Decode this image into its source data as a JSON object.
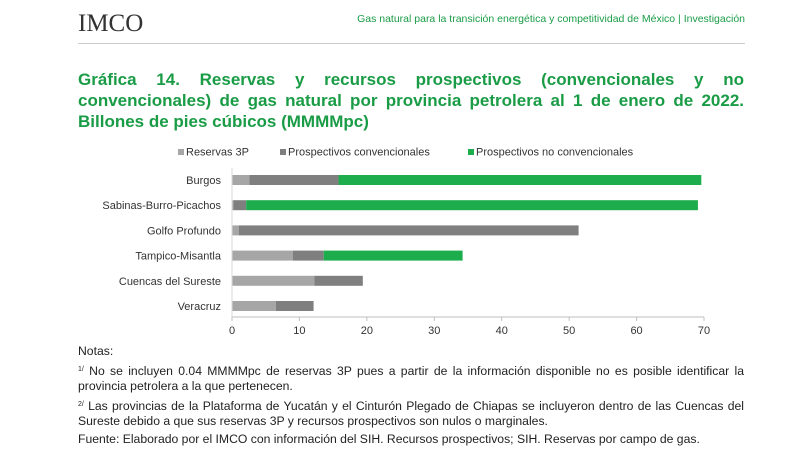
{
  "header": {
    "logo_text": "IMCO",
    "section_text": "Gas natural para la transición energética y competitividad de México | Investigación"
  },
  "title": "Gráfica 14. Reservas y recursos prospectivos (convencionales y no convencionales) de gas natural por provincia petrolera al 1 de enero de 2022. Billones de pies cúbicos (MMMMpc)",
  "chart_data": {
    "type": "bar",
    "orientation": "horizontal",
    "stacked": true,
    "categories": [
      "Burgos",
      "Sabinas-Burro-Picachos",
      "Golfo Profundo",
      "Tampico-Misantla",
      "Cuencas del Sureste",
      "Veracruz"
    ],
    "series": [
      {
        "name": "Reservas 3P",
        "color": "#a6a6a6",
        "values": [
          2.6,
          0.2,
          1.0,
          9.0,
          12.2,
          6.5
        ]
      },
      {
        "name": "Prospectivos convencionales",
        "color": "#7f7f7f",
        "values": [
          13.2,
          1.9,
          50.4,
          4.6,
          7.2,
          5.6
        ]
      },
      {
        "name": "Prospectivos no convencionales",
        "color": "#1ead4c",
        "values": [
          53.8,
          67.0,
          0,
          20.6,
          0,
          0
        ]
      }
    ],
    "xlim": [
      0,
      70
    ],
    "xticks": [
      0,
      10,
      20,
      30,
      40,
      50,
      60,
      70
    ],
    "legend_position": "top",
    "grid": false
  },
  "notes": {
    "heading": "Notas:",
    "note1_num": "1/",
    "note1": " No se incluyen 0.04 MMMMpc de reservas 3P pues a partir de la información disponible no es posible identificar la provincia petrolera a la que pertenecen.",
    "note2_num": "2/",
    "note2": " Las provincias de la Plataforma de Yucatán y el Cinturón Plegado de Chiapas se incluyeron dentro de las Cuencas del Sureste debido a que sus reservas 3P y recursos prospectivos son nulos o marginales.",
    "source": "Fuente: Elaborado por el IMCO con información del SIH. Recursos prospectivos; SIH. Reservas por campo de gas."
  }
}
